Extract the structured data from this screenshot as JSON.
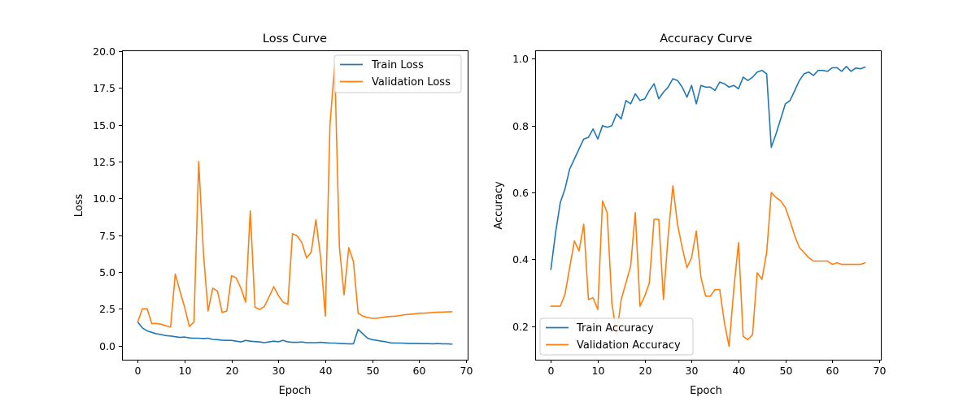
{
  "colors": {
    "train": "#1f77b4",
    "validation": "#ff7f0e"
  },
  "chart_data": [
    {
      "type": "line",
      "title": "Loss Curve",
      "xlabel": "Epoch",
      "ylabel": "Loss",
      "xlim": [
        -3.35,
        70.35
      ],
      "ylim": [
        -0.96,
        20.05
      ],
      "xticks": [
        0,
        10,
        20,
        30,
        40,
        50,
        60,
        70
      ],
      "yticks": [
        0.0,
        2.5,
        5.0,
        7.5,
        10.0,
        12.5,
        15.0,
        17.5,
        20.0
      ],
      "ytick_labels": [
        "0.0",
        "2.5",
        "5.0",
        "7.5",
        "10.0",
        "12.5",
        "15.0",
        "17.5",
        "20.0"
      ],
      "legend_position": "upper right",
      "series": [
        {
          "name": "Train Loss",
          "color": "#1f77b4",
          "values": [
            1.6,
            1.2,
            1.0,
            0.9,
            0.8,
            0.75,
            0.68,
            0.65,
            0.6,
            0.55,
            0.58,
            0.52,
            0.5,
            0.5,
            0.48,
            0.5,
            0.42,
            0.4,
            0.37,
            0.35,
            0.35,
            0.3,
            0.25,
            0.35,
            0.3,
            0.27,
            0.25,
            0.2,
            0.25,
            0.3,
            0.26,
            0.36,
            0.25,
            0.22,
            0.22,
            0.24,
            0.2,
            0.2,
            0.2,
            0.22,
            0.19,
            0.17,
            0.17,
            0.15,
            0.13,
            0.12,
            0.12,
            1.1,
            0.8,
            0.5,
            0.4,
            0.35,
            0.3,
            0.25,
            0.18,
            0.17,
            0.17,
            0.16,
            0.15,
            0.15,
            0.14,
            0.13,
            0.13,
            0.12,
            0.14,
            0.12,
            0.12,
            0.1
          ]
        },
        {
          "name": "Validation Loss",
          "color": "#ff7f0e",
          "values": [
            1.6,
            2.5,
            2.5,
            1.5,
            1.5,
            1.45,
            1.35,
            1.25,
            4.85,
            3.7,
            2.6,
            1.3,
            1.6,
            12.5,
            6.3,
            2.35,
            3.9,
            3.7,
            2.25,
            2.35,
            4.75,
            4.6,
            3.9,
            2.95,
            9.15,
            2.6,
            2.45,
            2.65,
            3.3,
            4.0,
            3.4,
            2.95,
            2.8,
            7.6,
            7.45,
            7.0,
            5.95,
            6.35,
            8.55,
            6.0,
            2.0,
            15.0,
            19.1,
            6.7,
            3.45,
            6.65,
            5.7,
            2.2,
            2.0,
            1.9,
            1.85,
            1.85,
            1.9,
            1.95,
            1.98,
            2.0,
            2.05,
            2.1,
            2.12,
            2.15,
            2.2,
            2.2,
            2.22,
            2.25,
            2.27,
            2.27,
            2.29,
            2.3
          ]
        }
      ]
    },
    {
      "type": "line",
      "title": "Accuracy Curve",
      "xlabel": "Epoch",
      "ylabel": "Accuracy",
      "xlim": [
        -3.35,
        70.35
      ],
      "ylim": [
        0.1,
        1.025
      ],
      "xticks": [
        0,
        10,
        20,
        30,
        40,
        50,
        60,
        70
      ],
      "yticks": [
        0.2,
        0.4,
        0.6,
        0.8,
        1.0
      ],
      "ytick_labels": [
        "0.2",
        "0.4",
        "0.6",
        "0.8",
        "1.0"
      ],
      "legend_position": "lower left",
      "series": [
        {
          "name": "Train Accuracy",
          "color": "#1f77b4",
          "values": [
            0.37,
            0.48,
            0.57,
            0.61,
            0.67,
            0.7,
            0.73,
            0.76,
            0.765,
            0.79,
            0.76,
            0.8,
            0.795,
            0.8,
            0.835,
            0.82,
            0.875,
            0.865,
            0.895,
            0.875,
            0.88,
            0.905,
            0.925,
            0.88,
            0.9,
            0.915,
            0.94,
            0.935,
            0.915,
            0.885,
            0.92,
            0.865,
            0.92,
            0.915,
            0.915,
            0.905,
            0.93,
            0.925,
            0.915,
            0.92,
            0.91,
            0.945,
            0.935,
            0.945,
            0.96,
            0.965,
            0.955,
            0.735,
            0.775,
            0.82,
            0.865,
            0.875,
            0.905,
            0.935,
            0.955,
            0.96,
            0.95,
            0.965,
            0.965,
            0.962,
            0.973,
            0.973,
            0.962,
            0.977,
            0.962,
            0.972,
            0.97,
            0.975
          ]
        },
        {
          "name": "Validation Accuracy",
          "color": "#ff7f0e",
          "values": [
            0.26,
            0.26,
            0.26,
            0.295,
            0.375,
            0.455,
            0.425,
            0.505,
            0.28,
            0.285,
            0.25,
            0.575,
            0.54,
            0.27,
            0.175,
            0.28,
            0.33,
            0.38,
            0.54,
            0.26,
            0.29,
            0.33,
            0.52,
            0.52,
            0.28,
            0.47,
            0.62,
            0.505,
            0.435,
            0.375,
            0.405,
            0.485,
            0.345,
            0.29,
            0.29,
            0.31,
            0.31,
            0.21,
            0.14,
            0.31,
            0.45,
            0.17,
            0.16,
            0.175,
            0.36,
            0.34,
            0.42,
            0.6,
            0.585,
            0.575,
            0.555,
            0.515,
            0.47,
            0.435,
            0.42,
            0.405,
            0.395,
            0.395,
            0.395,
            0.395,
            0.385,
            0.39,
            0.385,
            0.385,
            0.385,
            0.385,
            0.385,
            0.39
          ]
        }
      ]
    }
  ]
}
